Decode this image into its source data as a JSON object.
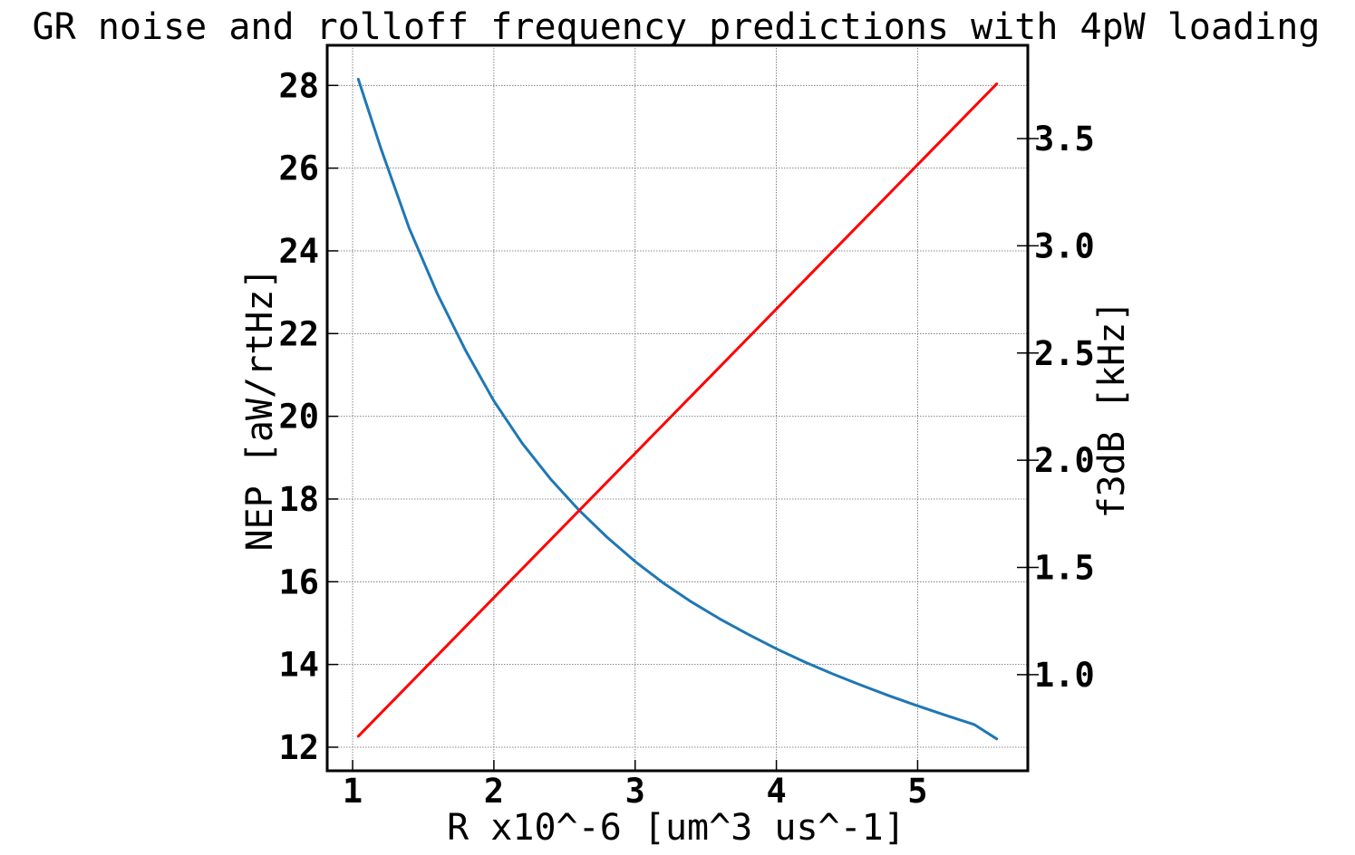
{
  "chart_data": {
    "type": "line",
    "title": "GR noise and rolloff frequency predictions with 4pW loading",
    "xlabel": "R x10^-6 [um^3 us^-1]",
    "ylabel": "NEP [aW/rtHz]",
    "y2label": "f3dB [kHz]",
    "xlim": [
      0.82,
      5.78
    ],
    "ylim": [
      11.43,
      28.97
    ],
    "y2lim": [
      0.552,
      3.935
    ],
    "xticks": [
      1,
      2,
      3,
      4,
      5
    ],
    "yticks": [
      12,
      14,
      16,
      18,
      20,
      22,
      24,
      26,
      28
    ],
    "y2ticks": [
      1.0,
      1.5,
      2.0,
      2.5,
      3.0,
      3.5
    ],
    "xtick_labels": [
      "1",
      "2",
      "3",
      "4",
      "5"
    ],
    "ytick_labels": [
      "12",
      "14",
      "16",
      "18",
      "20",
      "22",
      "24",
      "26",
      "28"
    ],
    "y2tick_labels": [
      "1.0",
      "1.5",
      "2.0",
      "2.5",
      "3.0",
      "3.5"
    ],
    "grid": true,
    "series": [
      {
        "axis": "left",
        "color": "#1f77b4",
        "x": [
          1.04,
          1.2,
          1.4,
          1.6,
          1.8,
          2.0,
          2.2,
          2.4,
          2.6,
          2.8,
          3.0,
          3.2,
          3.4,
          3.6,
          3.8,
          4.0,
          4.2,
          4.4,
          4.6,
          4.8,
          5.0,
          5.2,
          5.4,
          5.56
        ],
        "y": [
          28.15,
          26.48,
          24.55,
          22.96,
          21.59,
          20.37,
          19.35,
          18.49,
          17.74,
          17.08,
          16.49,
          15.97,
          15.51,
          15.1,
          14.73,
          14.38,
          14.06,
          13.77,
          13.5,
          13.24,
          13.0,
          12.77,
          12.55,
          12.2
        ]
      },
      {
        "axis": "right",
        "color": "#ff0000",
        "x": [
          1.04,
          5.56
        ],
        "y": [
          0.713,
          3.755
        ]
      }
    ]
  }
}
